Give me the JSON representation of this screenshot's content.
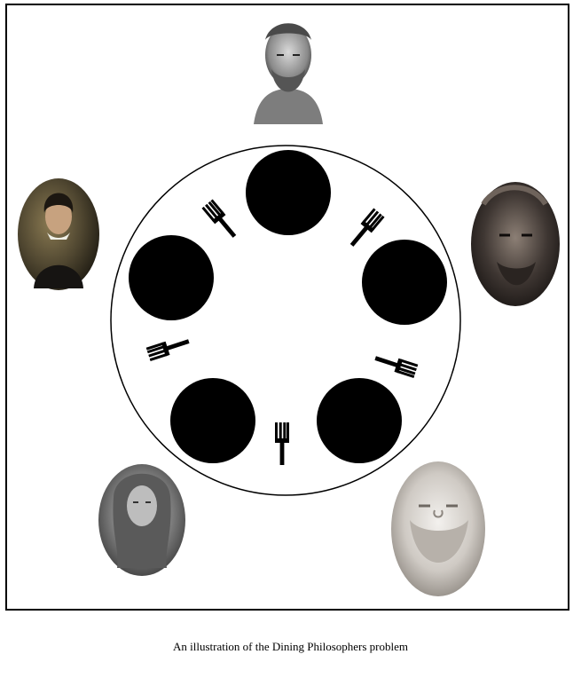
{
  "caption": "An illustration of the Dining Philosophers problem",
  "colors": {
    "frame": "#000000",
    "plate": "#000000",
    "fork": "#000000",
    "table": "#ffffff"
  },
  "table": {
    "philosophers": 5,
    "forks": 5,
    "plates": 5
  },
  "philosophers": [
    {
      "name": "philosopher-top",
      "style": "marble bust engraving, curly beard"
    },
    {
      "name": "philosopher-right",
      "style": "dark bronze mask, beard"
    },
    {
      "name": "philosopher-bottom-right",
      "style": "white marble bust, bald, curly beard"
    },
    {
      "name": "philosopher-bottom-left",
      "style": "engraving, curled wig"
    },
    {
      "name": "philosopher-left",
      "style": "painted portrait, long dark hair, white collar"
    }
  ]
}
